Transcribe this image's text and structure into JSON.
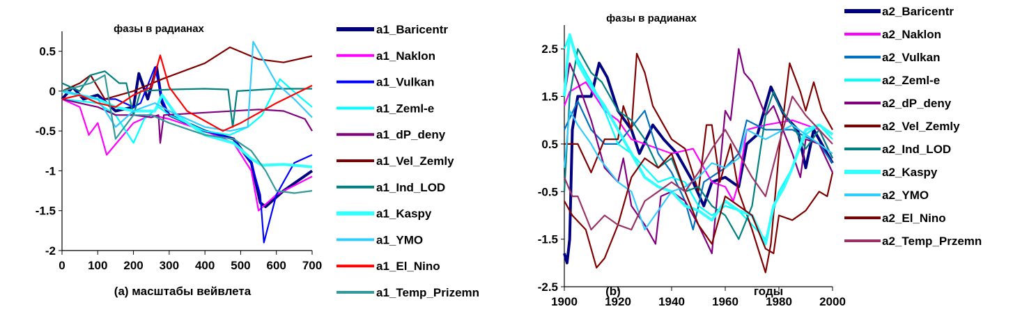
{
  "chart_data": [
    {
      "type": "line",
      "title": "фазы в радианах",
      "xlabel": "(a) масштабы вейвлета",
      "ylabel": "",
      "xlim": [
        0,
        700
      ],
      "ylim": [
        -2,
        0.75
      ],
      "xticks": [
        0,
        100,
        200,
        300,
        400,
        500,
        600,
        700
      ],
      "xtick_labels": [
        "0",
        "100",
        "200",
        "300",
        "400",
        "500",
        "600",
        "700"
      ],
      "yticks": [
        0.5,
        0,
        -0.5,
        -1,
        -1.5,
        -2
      ],
      "ytick_labels": [
        "0.5",
        "0",
        "-0.5",
        "-1",
        "-1.5",
        "-2"
      ],
      "legend_position": "right",
      "grid": false,
      "series": [
        {
          "name": "a1_Baricentr",
          "color": "#000080",
          "thick": true,
          "x": [
            0,
            30,
            60,
            100,
            150,
            200,
            215,
            240,
            265,
            280,
            300,
            400,
            480,
            530,
            555,
            570,
            620,
            700
          ],
          "y": [
            -0.1,
            0.05,
            -0.1,
            -0.05,
            -0.25,
            -0.2,
            0.22,
            -0.1,
            0.3,
            -0.15,
            -0.3,
            -0.5,
            -0.6,
            -0.9,
            -1.4,
            -1.45,
            -1.25,
            -1.0
          ]
        },
        {
          "name": "a1_Naklon",
          "color": "#FF00FF",
          "thick": false,
          "x": [
            0,
            50,
            75,
            100,
            125,
            200,
            250,
            300,
            400,
            480,
            530,
            550,
            600,
            700
          ],
          "y": [
            -0.1,
            -0.2,
            -0.55,
            -0.4,
            -0.8,
            -0.4,
            -0.3,
            -0.35,
            -0.5,
            -0.65,
            -1.0,
            -1.5,
            -1.3,
            -1.07
          ]
        },
        {
          "name": "a1_Vulkan",
          "color": "#0000FF",
          "thick": false,
          "x": [
            0,
            100,
            150,
            200,
            220,
            260,
            280,
            300,
            400,
            480,
            530,
            555,
            565,
            600,
            650,
            700
          ],
          "y": [
            0,
            -0.1,
            -0.1,
            -0.2,
            -0.15,
            0.3,
            -0.1,
            -0.3,
            -0.5,
            -0.6,
            -0.9,
            -1.3,
            -1.9,
            -1.3,
            -0.9,
            -0.8
          ]
        },
        {
          "name": "a1_Zeml-e",
          "color": "#00FFFF",
          "thick": false,
          "x": [
            0,
            100,
            150,
            200,
            230,
            270,
            300,
            400,
            470,
            520,
            560,
            610,
            660,
            700
          ],
          "y": [
            -0.1,
            -0.15,
            -0.3,
            -0.65,
            -0.35,
            -0.2,
            -0.3,
            -0.5,
            -0.55,
            -0.45,
            -0.3,
            0.15,
            -0.05,
            -0.2
          ]
        },
        {
          "name": "a1_dP_deny",
          "color": "#800080",
          "thick": false,
          "x": [
            0,
            100,
            150,
            200,
            250,
            270,
            275,
            285,
            400,
            550,
            620,
            680,
            700
          ],
          "y": [
            -0.1,
            -0.2,
            -0.3,
            -0.3,
            -0.33,
            -0.3,
            -0.65,
            -0.3,
            -0.27,
            -0.23,
            -0.25,
            -0.35,
            -0.5
          ]
        },
        {
          "name": "a1_Vel_Zemly",
          "color": "#800000",
          "thick": false,
          "x": [
            0,
            50,
            80,
            120,
            200,
            280,
            400,
            470,
            550,
            620,
            700
          ],
          "y": [
            0,
            0.1,
            0.2,
            -0.1,
            0,
            0.15,
            0.35,
            0.55,
            0.4,
            0.36,
            0.44
          ]
        },
        {
          "name": "a1_Ind_LOD",
          "color": "#008080",
          "thick": false,
          "x": [
            0,
            50,
            80,
            120,
            160,
            180,
            200,
            220,
            300,
            400,
            465,
            478,
            490,
            600,
            700
          ],
          "y": [
            0.1,
            0,
            0.2,
            0.25,
            0.1,
            0.1,
            -0.3,
            0,
            0.02,
            0.03,
            0.02,
            -0.45,
            0,
            0.03,
            0.03
          ]
        },
        {
          "name": "a1_Kaspy",
          "color": "#33FFFF",
          "thick": true,
          "x": [
            0,
            100,
            150,
            200,
            260,
            280,
            320,
            400,
            480,
            530,
            560,
            620,
            700
          ],
          "y": [
            0,
            -0.1,
            -0.2,
            -0.25,
            -0.25,
            -0.05,
            -0.3,
            -0.55,
            -0.65,
            -0.85,
            -0.93,
            -0.92,
            -0.95
          ]
        },
        {
          "name": "a1_YMO",
          "color": "#33CCFF",
          "thick": false,
          "x": [
            0,
            100,
            150,
            200,
            260,
            300,
            400,
            470,
            520,
            535,
            600,
            650,
            700
          ],
          "y": [
            0,
            -0.1,
            -0.45,
            -0.25,
            -0.15,
            -0.25,
            -0.45,
            -0.5,
            -0.45,
            0.62,
            0.1,
            -0.1,
            -0.33
          ]
        },
        {
          "name": "a1_El_Nino",
          "color": "#FF0000",
          "thick": false,
          "x": [
            0,
            50,
            100,
            150,
            200,
            250,
            275,
            300,
            350,
            450,
            500,
            600,
            700
          ],
          "y": [
            -0.1,
            -0.05,
            -0.15,
            -0.2,
            -0.05,
            0.05,
            0.45,
            0.05,
            -0.25,
            -0.5,
            -0.4,
            -0.15,
            0.07
          ]
        },
        {
          "name": "a1_Temp_Prizemn",
          "color": "#339999",
          "thick": false,
          "x": [
            0,
            80,
            120,
            150,
            200,
            250,
            300,
            400,
            480,
            530,
            570,
            600,
            650,
            700
          ],
          "y": [
            0,
            0.1,
            0.2,
            -0.6,
            -0.3,
            -0.3,
            -0.4,
            -0.55,
            -0.6,
            -0.75,
            -1.0,
            -1.25,
            -1.28,
            -1.25
          ]
        }
      ]
    },
    {
      "type": "line",
      "title": "фазы в радианах",
      "panel_label": "(b)",
      "xlabel": "годы",
      "ylabel": "",
      "xlim": [
        1900,
        2000
      ],
      "ylim": [
        -2.5,
        3
      ],
      "xticks": [
        1900,
        1920,
        1940,
        1960,
        1980,
        2000
      ],
      "xtick_labels": [
        "1900",
        "1920",
        "1940",
        "1960",
        "1980",
        "2000"
      ],
      "yticks": [
        2.5,
        1.5,
        0.5,
        -0.5,
        -1.5,
        -2.5
      ],
      "ytick_labels": [
        "2.5",
        "1.5",
        "0.5",
        "-0.5",
        "-1.5",
        "-2.5"
      ],
      "legend_position": "right",
      "grid": false,
      "series": [
        {
          "name": "a2_Baricentr",
          "color": "#000080",
          "thick": true,
          "x": [
            1900,
            1901,
            1902,
            1903,
            1905,
            1910,
            1913,
            1916,
            1920,
            1925,
            1928,
            1933,
            1937,
            1942,
            1948,
            1952,
            1955,
            1960,
            1965,
            1968,
            1972,
            1977,
            1982,
            1987,
            1990,
            1993,
            2000
          ],
          "y": [
            -1.8,
            -2.0,
            -1.5,
            0.8,
            1.5,
            1.5,
            2.2,
            1.9,
            1.2,
            0.8,
            0.3,
            0.9,
            0.6,
            0.3,
            -0.3,
            -0.8,
            -0.3,
            -0.2,
            -0.4,
            0.5,
            0.7,
            1.7,
            1.1,
            0.8,
            0.0,
            0.8,
            0.1
          ]
        },
        {
          "name": "a2_Naklon",
          "color": "#FF00FF",
          "thick": false,
          "x": [
            1900,
            1902,
            1908,
            1915,
            1920,
            1925,
            1930,
            1940,
            1948,
            1955,
            1960,
            1963,
            1965,
            1968,
            1975,
            1985,
            1995,
            2000
          ],
          "y": [
            1.3,
            1.6,
            1.8,
            1.2,
            1.0,
            0.6,
            0.5,
            0.3,
            0.4,
            -0.3,
            -0.4,
            -0.7,
            -0.3,
            0.8,
            0.9,
            1.0,
            0.8,
            0.2
          ]
        },
        {
          "name": "a2_Vulkan",
          "color": "#0070C0",
          "thick": false,
          "x": [
            1900,
            1905,
            1910,
            1915,
            1920,
            1930,
            1935,
            1940,
            1945,
            1948,
            1952,
            1960,
            1965,
            1968,
            1975,
            1985,
            1995,
            2000
          ],
          "y": [
            0.8,
            1.4,
            0.8,
            0.5,
            0.5,
            1.2,
            0.3,
            -0.1,
            -0.7,
            -1.3,
            -0.3,
            0.0,
            0.3,
            1.0,
            0.8,
            0.8,
            0.5,
            0.1
          ]
        },
        {
          "name": "a2_Zeml-e",
          "color": "#00FFFF",
          "thick": false,
          "x": [
            1900,
            1902,
            1905,
            1910,
            1915,
            1920,
            1925,
            1930,
            1935,
            1940,
            1945,
            1950,
            1955,
            1960,
            1965,
            1970,
            1975,
            1980,
            1985,
            1990,
            1995,
            2000
          ],
          "y": [
            2.5,
            2.8,
            2.3,
            1.8,
            1.2,
            0.5,
            0.3,
            0.0,
            -0.3,
            -0.2,
            -0.3,
            -0.8,
            -1.0,
            -0.8,
            -0.9,
            -1.2,
            -1.5,
            -0.5,
            0.0,
            0.7,
            0.9,
            0.6
          ]
        },
        {
          "name": "a2_dP_deny",
          "color": "#800080",
          "thick": false,
          "x": [
            1900,
            1902,
            1905,
            1910,
            1915,
            1920,
            1922,
            1925,
            1930,
            1934,
            1936,
            1940,
            1945,
            1950,
            1955,
            1957,
            1960,
            1962,
            1965,
            1967,
            1970,
            1975,
            1978,
            1985,
            1988,
            1990,
            1995,
            2000
          ],
          "y": [
            1.5,
            2.2,
            1.8,
            1.0,
            0.0,
            -0.3,
            0.2,
            -0.8,
            -1.2,
            -1.6,
            -0.6,
            -0.5,
            -0.7,
            -1.2,
            -1.8,
            -0.6,
            1.2,
            1.0,
            2.5,
            2.0,
            1.8,
            1.1,
            1.3,
            0.3,
            -0.2,
            0.6,
            0.5,
            -0.1
          ]
        },
        {
          "name": "a2_Vel_Zemly",
          "color": "#800000",
          "thick": false,
          "x": [
            1900,
            1905,
            1910,
            1915,
            1920,
            1922,
            1925,
            1927,
            1930,
            1933,
            1940,
            1945,
            1950,
            1953,
            1955,
            1958,
            1962,
            1965,
            1970,
            1975,
            1977,
            1980,
            1984,
            1988,
            1990,
            1993,
            1996,
            2000
          ],
          "y": [
            0.5,
            0.5,
            -0.1,
            0.6,
            0.6,
            1.3,
            0.8,
            2.4,
            2.0,
            1.3,
            0.6,
            0.4,
            -0.5,
            0.9,
            0.9,
            -0.3,
            0.5,
            -0.5,
            -1.3,
            -2.2,
            -1.6,
            0.3,
            2.2,
            1.6,
            1.2,
            1.8,
            1.2,
            0.8
          ]
        },
        {
          "name": "a2_Ind_LOD",
          "color": "#008080",
          "thick": false,
          "x": [
            1900,
            1902,
            1905,
            1910,
            1914,
            1920,
            1925,
            1930,
            1935,
            1940,
            1945,
            1950,
            1955,
            1960,
            1965,
            1970,
            1975,
            1978,
            1980,
            1985,
            1990,
            1995,
            2000
          ],
          "y": [
            -0.5,
            1.5,
            2.5,
            2.0,
            1.8,
            1.2,
            1.0,
            0.6,
            0.0,
            0.2,
            -0.5,
            -0.4,
            -0.8,
            -1.0,
            -1.5,
            -0.8,
            1.1,
            1.6,
            1.3,
            0.9,
            0.4,
            0.8,
            0.2
          ]
        },
        {
          "name": "a2_Kaspy",
          "color": "#33FFFF",
          "thick": true,
          "x": [
            1900,
            1902,
            1905,
            1910,
            1915,
            1920,
            1925,
            1930,
            1935,
            1940,
            1945,
            1950,
            1955,
            1960,
            1965,
            1970,
            1975,
            1978,
            1982,
            1985,
            1990,
            1995,
            2000
          ],
          "y": [
            1.5,
            2.8,
            2.2,
            1.7,
            1.3,
            0.8,
            0.3,
            -0.2,
            -0.4,
            -0.5,
            -0.8,
            -0.9,
            -1.1,
            -0.7,
            -0.9,
            -1.0,
            -1.6,
            -0.8,
            -0.4,
            0.0,
            0.8,
            0.9,
            0.7
          ]
        },
        {
          "name": "a2_YMO",
          "color": "#33CCFF",
          "thick": false,
          "x": [
            1900,
            1902,
            1905,
            1910,
            1913,
            1920,
            1925,
            1930,
            1935,
            1940,
            1945,
            1950,
            1955,
            1960,
            1965,
            1968,
            1975,
            1985,
            1995,
            2000
          ],
          "y": [
            0.0,
            1.2,
            0.9,
            0.5,
            0.2,
            -0.3,
            -0.5,
            -1.3,
            -0.9,
            -0.5,
            -0.4,
            -0.2,
            0.1,
            0.0,
            0.2,
            0.8,
            0.6,
            0.9,
            0.5,
            0.3
          ]
        },
        {
          "name": "a2_El_Nino",
          "color": "#800000",
          "thick": false,
          "x": [
            1900,
            1903,
            1908,
            1912,
            1915,
            1920,
            1925,
            1930,
            1935,
            1940,
            1945,
            1950,
            1955,
            1960,
            1965,
            1970,
            1975,
            1978,
            1980,
            1985,
            1990,
            1995,
            1998,
            2000
          ],
          "y": [
            -0.7,
            -1.0,
            -1.3,
            -2.1,
            -1.9,
            -1.2,
            -0.2,
            0.2,
            0.0,
            0.3,
            -0.5,
            -1.2,
            -1.6,
            -0.6,
            -0.8,
            -1.0,
            -1.7,
            -1.8,
            -1.0,
            -1.1,
            -0.9,
            -0.5,
            -0.6,
            -0.1
          ]
        },
        {
          "name": "a2_Temp_Przemn",
          "color": "#993366",
          "thick": false,
          "x": [
            1900,
            1903,
            1905,
            1910,
            1915,
            1920,
            1925,
            1930,
            1935,
            1940,
            1945,
            1950,
            1955,
            1960,
            1965,
            1970,
            1975,
            1980,
            1985,
            1990,
            1995,
            2000
          ],
          "y": [
            -0.2,
            -0.6,
            -0.6,
            -1.3,
            -1.0,
            -1.2,
            -1.3,
            -0.7,
            -0.5,
            -0.3,
            -0.5,
            -0.1,
            0.4,
            0.8,
            0.3,
            -0.2,
            -0.6,
            0.5,
            1.5,
            1.1,
            0.8,
            0.5
          ]
        }
      ]
    }
  ]
}
